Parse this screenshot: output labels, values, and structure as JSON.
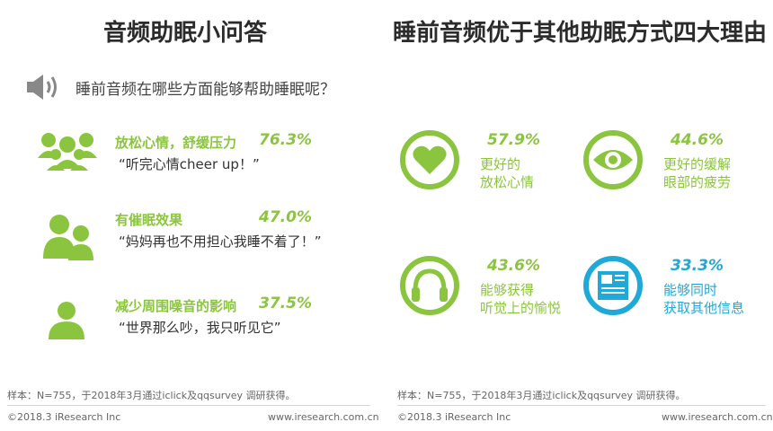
{
  "left": {
    "title": "音频助眠小问答",
    "question": "睡前音频在哪些方面能够帮助睡眠呢？",
    "items": [
      {
        "label": "放松心情，舒缓压力",
        "pct": "76.3%",
        "quote": "“听完心情cheer up！”",
        "icon": "group-people-icon"
      },
      {
        "label": "有催眠效果",
        "pct": "47.0%",
        "quote": "“妈妈再也不用担心我睡不着了！”",
        "icon": "two-people-icon"
      },
      {
        "label": "减少周围噪音的影响",
        "pct": "37.5%",
        "quote": "“世界那么吵，我只听见它”",
        "icon": "person-icon"
      }
    ],
    "note": "样本：N=755，于2018年3月通过iclick及qqsurvey 调研获得。",
    "copyright": "©2018.3 iResearch Inc",
    "url": "www.iresearch.com.cn"
  },
  "right": {
    "title": "睡前音频优于其他助眠方式四大理由",
    "reasons": [
      {
        "pct": "57.9%",
        "line1": "更好的",
        "line2": "放松心情",
        "icon": "heart-icon",
        "color": "#8bc53f"
      },
      {
        "pct": "44.6%",
        "line1": "更好的缓解",
        "line2": "眼部的疲劳",
        "icon": "eye-icon",
        "color": "#8bc53f"
      },
      {
        "pct": "43.6%",
        "line1": "能够获得",
        "line2": "听觉上的愉悦",
        "icon": "headphones-icon",
        "color": "#8bc53f"
      },
      {
        "pct": "33.3%",
        "line1": "能够同时",
        "line2": "获取其他信息",
        "icon": "newspaper-icon",
        "color": "#1fa9d8"
      }
    ],
    "note": "样本：N=755，于2018年3月通过iclick及qqsurvey 调研获得。",
    "copyright": "©2018.3 iResearch Inc",
    "url": "www.iresearch.com.cn"
  },
  "chart_data": [
    {
      "type": "table",
      "title": "音频助眠小问答",
      "categories": [
        "放松心情，舒缓压力",
        "有催眠效果",
        "减少周围噪音的影响"
      ],
      "values": [
        76.3,
        47.0,
        37.5
      ]
    },
    {
      "type": "table",
      "title": "睡前音频优于其他助眠方式四大理由",
      "categories": [
        "更好的放松心情",
        "更好的缓解眼部的疲劳",
        "能够获得听觉上的愉悦",
        "能够同时获取其他信息"
      ],
      "values": [
        57.9,
        44.6,
        43.6,
        33.3
      ]
    }
  ]
}
